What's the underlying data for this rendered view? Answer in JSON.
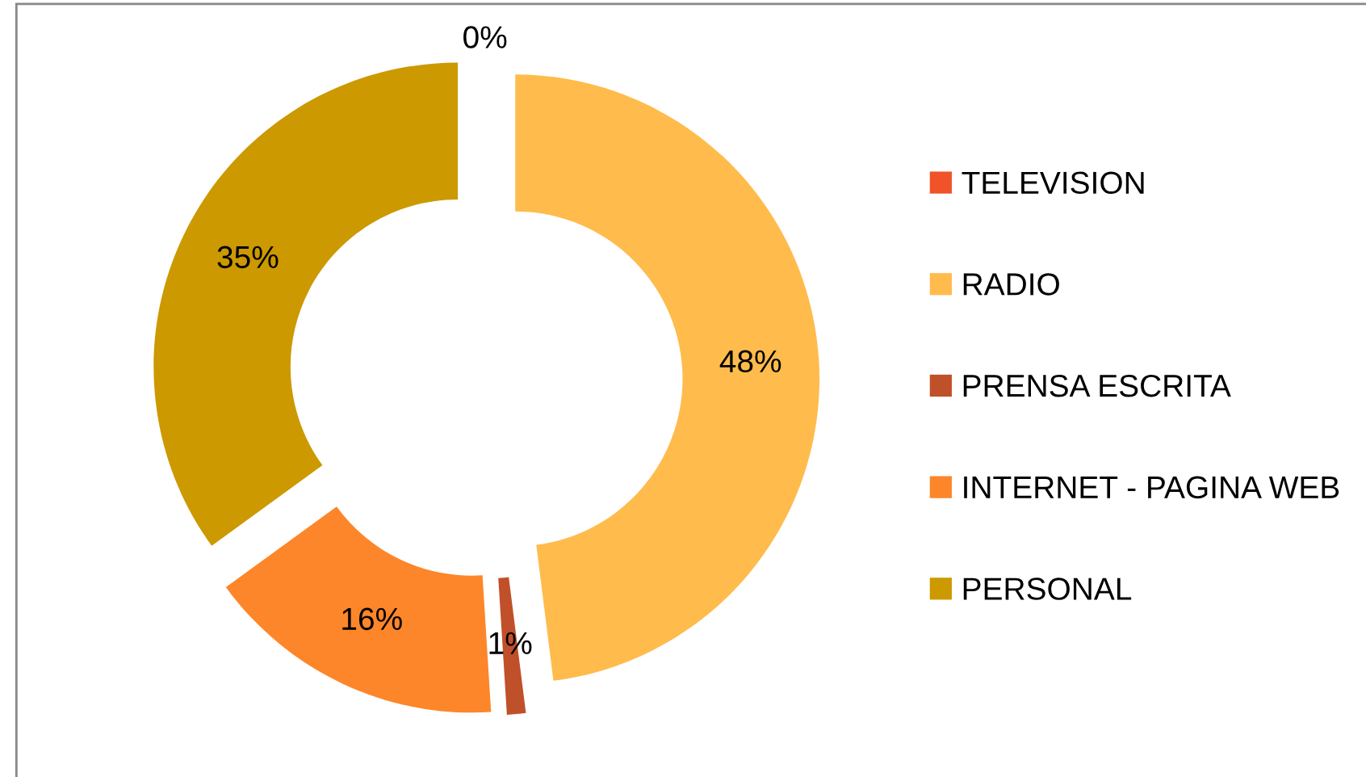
{
  "chart_data": {
    "type": "donut",
    "categories": [
      "TELEVISION",
      "RADIO",
      "PRENSA ESCRITA",
      "INTERNET - PAGINA WEB",
      "PERSONAL"
    ],
    "values": [
      0,
      48,
      1,
      16,
      35
    ],
    "colors": [
      "#f0522a",
      "#ffbb4c",
      "#c0502a",
      "#fd862a",
      "#cc9900"
    ],
    "value_labels": [
      "0%",
      "48%",
      "1%",
      "16%",
      "35%"
    ],
    "legend": "right"
  }
}
